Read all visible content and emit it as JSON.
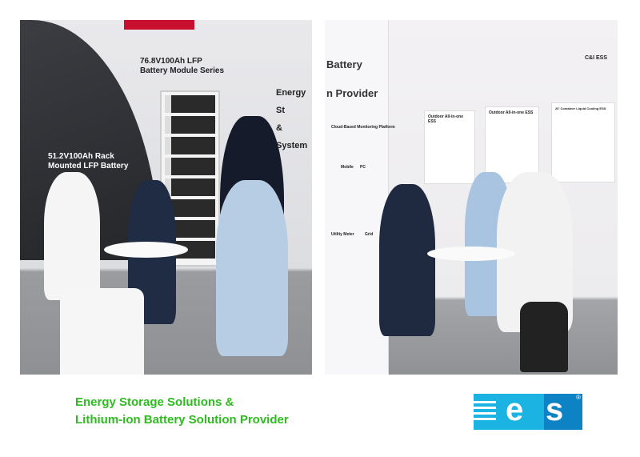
{
  "left_photo": {
    "booth_signs": [
      "76.8V100Ah LFP",
      "Battery Module Series",
      "51.2V100Ah Rack",
      "Mounted LFP Battery",
      "Energy St",
      "& System I"
    ]
  },
  "right_photo": {
    "booth_signs": [
      "Battery",
      "n Provider",
      "C&I ESS",
      "Cloud-Based Monitoring Platform",
      "Mobile",
      "PC",
      "Utility Meter",
      "Grid"
    ],
    "posters": [
      "Outdoor All-in-one ESS",
      "Outdoor All-in-one ESS",
      "20' Container Liquid Cooling ESS"
    ]
  },
  "tagline": {
    "line1": "Energy Storage Solutions &",
    "line2": "Lithium-ion Battery Solution Provider",
    "color": "#2dbb1f"
  },
  "logo": {
    "text": "ees",
    "registered": "®",
    "colors": {
      "light": "#1bb3e2",
      "dark": "#0d82c4"
    }
  }
}
